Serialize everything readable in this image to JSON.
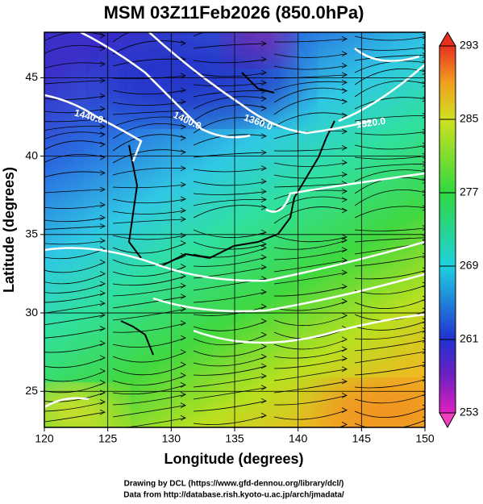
{
  "chart_data": {
    "type": "map",
    "title": "MSM 03Z11Feb2026 (850.0hPa)",
    "x_label": "Longitude (degrees)",
    "y_label": "Latitude  (degrees)",
    "xlim": [
      120,
      150
    ],
    "ylim": [
      22.7,
      47.9
    ],
    "xticks": [
      120,
      125,
      130,
      135,
      140,
      145,
      150
    ],
    "yticks": [
      25,
      30,
      35,
      40,
      45
    ],
    "grid": true,
    "colorbar": {
      "lim": [
        253,
        293
      ],
      "ticks": [
        253,
        261,
        269,
        277,
        285,
        293
      ]
    },
    "contour_labels": [
      "1440.0",
      "1400.0",
      "1360.0",
      "1320.0"
    ]
  },
  "credits": [
    "Drawing by DCL (https://www.gfd-dennou.org/library/dcl/)",
    "Data from http://database.rish.kyoto-u.ac.jp/arch/jmadata/"
  ]
}
